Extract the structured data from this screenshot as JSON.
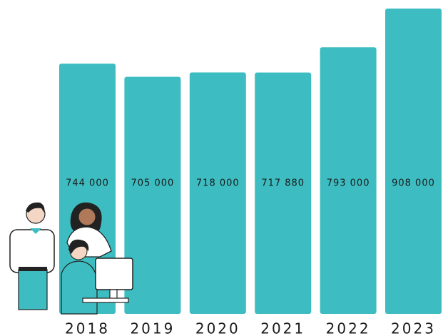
{
  "chart_data": {
    "type": "bar",
    "categories": [
      "2018",
      "2019",
      "2020",
      "2021",
      "2022",
      "2023"
    ],
    "values": [
      744000,
      705000,
      718000,
      717880,
      793000,
      908000
    ],
    "value_labels": [
      "744 000",
      "705 000",
      "718 000",
      "717 880",
      "793 000",
      "908 000"
    ],
    "color": "#3dbdc1"
  }
}
